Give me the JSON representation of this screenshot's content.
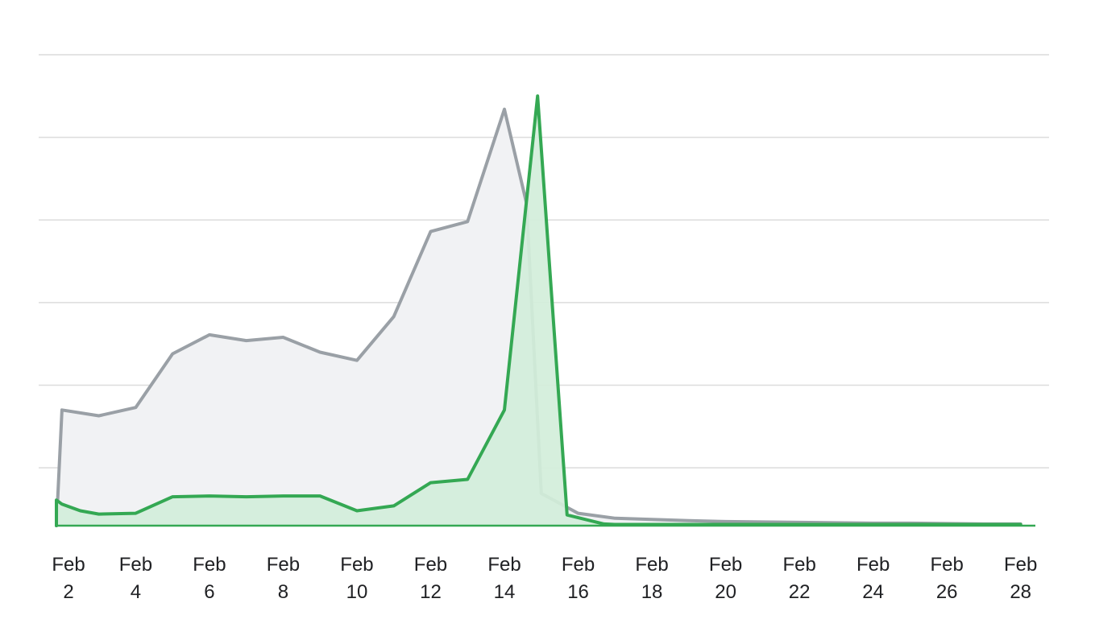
{
  "chart_data": {
    "type": "area",
    "x_unit": "day of February",
    "x": [
      2,
      3,
      4,
      5,
      6,
      7,
      8,
      9,
      10,
      11,
      12,
      13,
      14,
      15,
      16,
      17,
      18,
      19,
      20,
      21,
      22,
      23,
      24,
      25,
      26,
      27,
      28
    ],
    "x_ticks": [
      {
        "day": 2,
        "line1": "Feb",
        "line2": "2"
      },
      {
        "day": 4,
        "line1": "Feb",
        "line2": "4"
      },
      {
        "day": 6,
        "line1": "Feb",
        "line2": "6"
      },
      {
        "day": 8,
        "line1": "Feb",
        "line2": "8"
      },
      {
        "day": 10,
        "line1": "Feb",
        "line2": "10"
      },
      {
        "day": 12,
        "line1": "Feb",
        "line2": "12"
      },
      {
        "day": 14,
        "line1": "Feb",
        "line2": "14"
      },
      {
        "day": 16,
        "line1": "Feb",
        "line2": "16"
      },
      {
        "day": 18,
        "line1": "Feb",
        "line2": "18"
      },
      {
        "day": 20,
        "line1": "Feb",
        "line2": "20"
      },
      {
        "day": 22,
        "line1": "Feb",
        "line2": "22"
      },
      {
        "day": 24,
        "line1": "Feb",
        "line2": "24"
      },
      {
        "day": 26,
        "line1": "Feb",
        "line2": "26"
      },
      {
        "day": 28,
        "line1": "Feb",
        "line2": "28"
      }
    ],
    "xlim": [
      1.85,
      28.4
    ],
    "ylim": [
      0,
      5.7
    ],
    "y_grid": [
      0.7,
      1.7,
      2.7,
      3.7,
      4.7,
      5.7
    ],
    "grid": true,
    "legend": "none",
    "series": [
      {
        "color": "#9aa0a6",
        "fill": "#f1f2f4",
        "points": [
          [
            1.85,
            0
          ],
          [
            2,
            1.4
          ],
          [
            3,
            1.33
          ],
          [
            4,
            1.43
          ],
          [
            5,
            2.08
          ],
          [
            6,
            2.31
          ],
          [
            7,
            2.24
          ],
          [
            8,
            2.28
          ],
          [
            9,
            2.1
          ],
          [
            10,
            2.0
          ],
          [
            11,
            2.53
          ],
          [
            12,
            3.56
          ],
          [
            13,
            3.68
          ],
          [
            14,
            5.04
          ],
          [
            14.6,
            3.9
          ],
          [
            15,
            0.39
          ],
          [
            16,
            0.15
          ],
          [
            17,
            0.09
          ],
          [
            18,
            0.075
          ],
          [
            19,
            0.06
          ],
          [
            20,
            0.05
          ],
          [
            21,
            0.045
          ],
          [
            22,
            0.04
          ],
          [
            23,
            0.035
          ],
          [
            24,
            0.03
          ],
          [
            25,
            0.03
          ],
          [
            26,
            0.025
          ],
          [
            27,
            0.02
          ],
          [
            28,
            0.02
          ]
        ]
      },
      {
        "color": "#34a853",
        "fill": "#d2eeda",
        "points": [
          [
            1.85,
            0
          ],
          [
            1.85,
            0.31
          ],
          [
            2,
            0.26
          ],
          [
            2.5,
            0.18
          ],
          [
            3,
            0.14
          ],
          [
            4,
            0.15
          ],
          [
            5,
            0.35
          ],
          [
            6,
            0.36
          ],
          [
            7,
            0.35
          ],
          [
            8,
            0.36
          ],
          [
            9,
            0.36
          ],
          [
            10,
            0.18
          ],
          [
            11,
            0.24
          ],
          [
            12,
            0.52
          ],
          [
            13,
            0.56
          ],
          [
            14,
            1.4
          ],
          [
            14.9,
            5.2
          ],
          [
            15.7,
            0.13
          ],
          [
            16.7,
            0.02
          ],
          [
            17,
            0.015
          ],
          [
            18,
            0.015
          ],
          [
            19,
            0.015
          ],
          [
            20,
            0.015
          ],
          [
            21,
            0.015
          ],
          [
            22,
            0.015
          ],
          [
            23,
            0.015
          ],
          [
            24,
            0.015
          ],
          [
            25,
            0.015
          ],
          [
            26,
            0.015
          ],
          [
            27,
            0.015
          ],
          [
            28,
            0.015
          ]
        ]
      }
    ]
  }
}
